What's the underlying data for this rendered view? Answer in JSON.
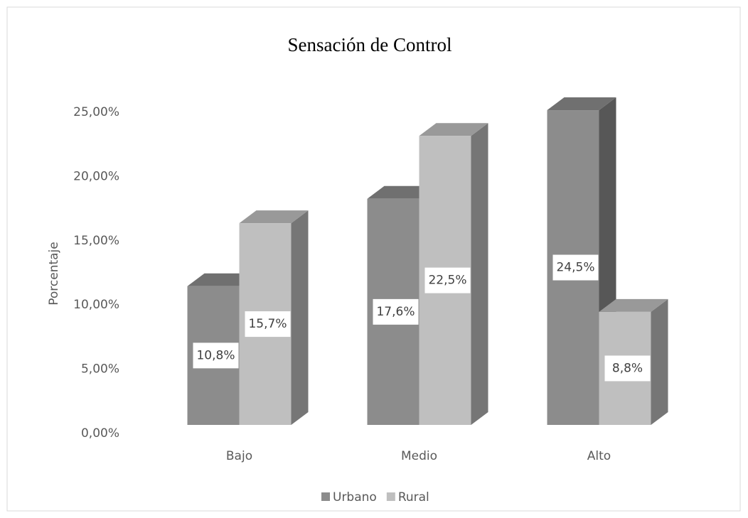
{
  "chart_data": {
    "type": "bar3d",
    "title": "Sensación  de Control",
    "y_label": "Porcentaje",
    "categories": [
      "Bajo",
      "Medio",
      "Alto"
    ],
    "series": [
      {
        "name": "Urbano",
        "color": "#8c8c8c",
        "values": [
          10.8,
          17.6,
          24.5
        ],
        "value_labels": [
          "10,8%",
          "17,6%",
          "24,5%"
        ]
      },
      {
        "name": "Rural",
        "color": "#bfbfbf",
        "values": [
          15.7,
          22.5,
          8.8
        ],
        "value_labels": [
          "15,7%",
          "22,5%",
          "8,8%"
        ]
      }
    ],
    "ylim": [
      0,
      25
    ],
    "yticks": [
      {
        "value": 0,
        "label": "0,00%"
      },
      {
        "value": 5,
        "label": "5,00%"
      },
      {
        "value": 10,
        "label": "10,00%"
      },
      {
        "value": 15,
        "label": "15,00%"
      },
      {
        "value": 20,
        "label": "20,00%"
      },
      {
        "value": 25,
        "label": "25,00%"
      }
    ],
    "legend": "bottom"
  }
}
